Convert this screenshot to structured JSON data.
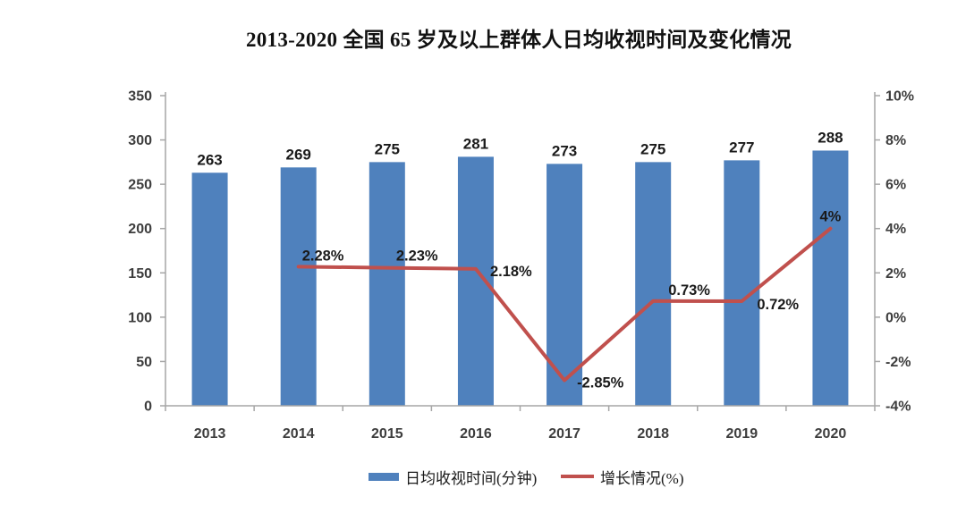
{
  "chart_data": {
    "type": "combo",
    "title": "2013-2020 全国 65 岁及以上群体人日均收视时间及变化情况",
    "categories": [
      "2013",
      "2014",
      "2015",
      "2016",
      "2017",
      "2018",
      "2019",
      "2020"
    ],
    "series": [
      {
        "name": "日均收视时间(分钟)",
        "type": "bar",
        "axis": "left",
        "color": "#4F81BD",
        "values": [
          263,
          269,
          275,
          281,
          273,
          275,
          277,
          288
        ],
        "labels": [
          "263",
          "269",
          "275",
          "281",
          "273",
          "275",
          "277",
          "288"
        ]
      },
      {
        "name": "增长情况(%)",
        "type": "line",
        "axis": "right",
        "color": "#C0504D",
        "values": [
          null,
          2.28,
          2.23,
          2.18,
          -2.85,
          0.73,
          0.72,
          4
        ],
        "labels": [
          "",
          "2.28%",
          "2.23%",
          "2.18%",
          "-2.85%",
          "0.73%",
          "0.72%",
          "4%"
        ]
      }
    ],
    "left_axis": {
      "min": 0,
      "max": 350,
      "step": 50,
      "ticks": [
        "350",
        "300",
        "250",
        "200",
        "150",
        "100",
        "50",
        "0"
      ]
    },
    "right_axis": {
      "min": -4,
      "max": 10,
      "step": 2,
      "ticks": [
        "10%",
        "8%",
        "6%",
        "4%",
        "2%",
        "0%",
        "-2%",
        "-4%"
      ]
    },
    "grid": false,
    "legend_position": "bottom",
    "axis_color": "#A6A6A6",
    "text_color": "#3d3d3d",
    "label_color": "#1a1a1a"
  }
}
